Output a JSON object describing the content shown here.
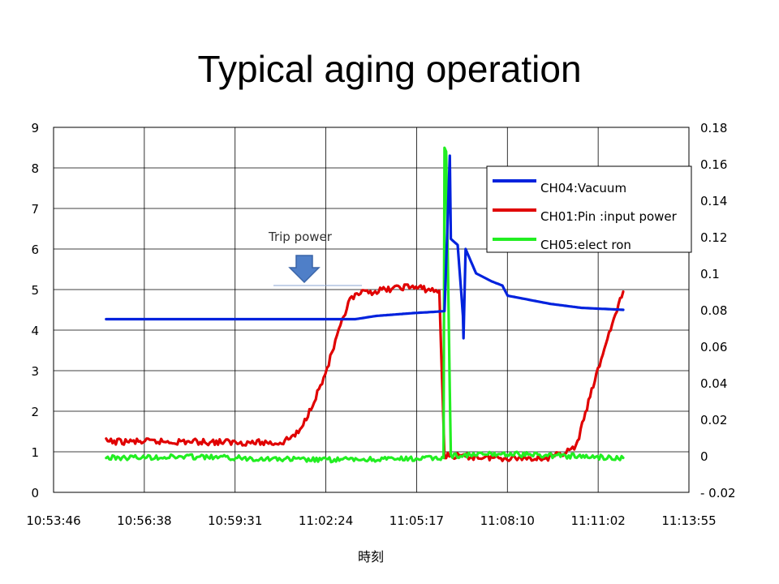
{
  "page": {
    "title": "Typical aging operation"
  },
  "chart_data": {
    "type": "line",
    "xlabel": "時刻",
    "x_ticks": [
      "10:53:46",
      "10:56:38",
      "10:59:31",
      "11:02:24",
      "11:05:17",
      "11:08:10",
      "11:11:02",
      "11:13:55"
    ],
    "y_left": {
      "ticks": [
        "0",
        "1",
        "2",
        "3",
        "4",
        "5",
        "6",
        "7",
        "8",
        "9"
      ],
      "lim": [
        0,
        9
      ]
    },
    "y_right": {
      "ticks": [
        "- 0.02",
        "0",
        "0.02",
        "0.04",
        "0.06",
        "0.08",
        "0.1",
        "0.12",
        "0.14",
        "0.16",
        "0.18"
      ],
      "lim": [
        -0.02,
        0.18
      ]
    },
    "grid": true,
    "legend": {
      "placement": "top-right"
    },
    "annotations": [
      {
        "text": "Trip power"
      }
    ],
    "series": [
      {
        "name": "CH04:Vacuum",
        "color": "#0022dd",
        "axis": "left",
        "points": [
          [
            "10:55:26",
            4.27
          ],
          [
            "11:01:00",
            4.27
          ],
          [
            "11:03:20",
            4.27
          ],
          [
            "11:04:00",
            4.35
          ],
          [
            "11:05:10",
            4.42
          ],
          [
            "11:05:50",
            4.45
          ],
          [
            "11:06:10",
            4.47
          ],
          [
            "11:06:20",
            8.3
          ],
          [
            "11:06:22",
            6.25
          ],
          [
            "11:06:35",
            6.1
          ],
          [
            "11:06:45",
            4.35
          ],
          [
            "11:06:46",
            3.8
          ],
          [
            "11:06:50",
            6.0
          ],
          [
            "11:07:10",
            5.4
          ],
          [
            "11:07:40",
            5.2
          ],
          [
            "11:08:00",
            5.1
          ],
          [
            "11:08:10",
            4.85
          ],
          [
            "11:09:30",
            4.65
          ],
          [
            "11:10:30",
            4.55
          ],
          [
            "11:11:50",
            4.5
          ]
        ]
      },
      {
        "name": "CH01:Pin :input power",
        "color": "#e00000",
        "axis": "left",
        "points": [
          [
            "10:55:26",
            1.25
          ],
          [
            "10:58:00",
            1.25
          ],
          [
            "11:01:00",
            1.22
          ],
          [
            "11:01:35",
            1.5
          ],
          [
            "11:02:20",
            2.8
          ],
          [
            "11:02:55",
            4.2
          ],
          [
            "11:03:10",
            4.75
          ],
          [
            "11:03:30",
            4.9
          ],
          [
            "11:04:20",
            5.0
          ],
          [
            "11:05:00",
            5.08
          ],
          [
            "11:05:40",
            5.0
          ],
          [
            "11:06:00",
            4.95
          ],
          [
            "11:06:10",
            0.9
          ],
          [
            "11:08:00",
            0.85
          ],
          [
            "11:09:30",
            0.85
          ],
          [
            "11:10:20",
            1.1
          ],
          [
            "11:10:50",
            2.5
          ],
          [
            "11:11:20",
            3.8
          ],
          [
            "11:11:50",
            4.95
          ]
        ]
      },
      {
        "name": "CH05:elect ron",
        "color": "#22ee22",
        "axis": "left",
        "points": [
          [
            "10:55:26",
            0.85
          ],
          [
            "10:58:00",
            0.88
          ],
          [
            "11:02:00",
            0.8
          ],
          [
            "11:05:00",
            0.82
          ],
          [
            "11:06:00",
            0.85
          ],
          [
            "11:06:08",
            0.85
          ],
          [
            "11:06:10",
            8.5
          ],
          [
            "11:06:13",
            8.4
          ],
          [
            "11:06:20",
            2.5
          ],
          [
            "11:06:22",
            0.9
          ],
          [
            "11:08:00",
            0.95
          ],
          [
            "11:10:00",
            0.9
          ],
          [
            "11:11:50",
            0.85
          ]
        ]
      }
    ]
  }
}
